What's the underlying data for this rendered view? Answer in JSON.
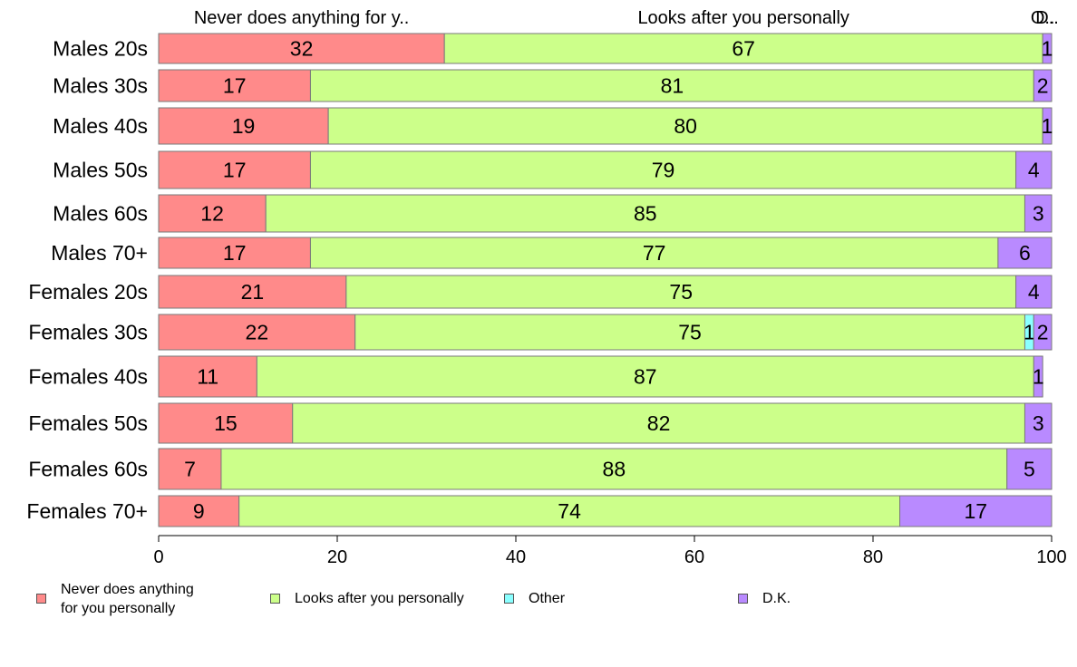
{
  "chart_data": {
    "type": "bar",
    "orientation": "horizontal",
    "stacked": "percent",
    "categories": [
      "Males 20s",
      "Males 30s",
      "Males 40s",
      "Males 50s",
      "Males 60s",
      "Males 70+",
      "Females 20s",
      "Females 30s",
      "Females 40s",
      "Females 50s",
      "Females 60s",
      "Females 70+"
    ],
    "series": [
      {
        "name": "Never does anything for you personally",
        "top_label": "Never does anything for y..",
        "legend_label": "Never does anything\nfor you personally",
        "color": "#FF8A8A",
        "values": [
          32,
          17,
          19,
          17,
          12,
          17,
          21,
          22,
          11,
          15,
          7,
          9
        ]
      },
      {
        "name": "Looks after you personally",
        "top_label": "Looks after you personally",
        "legend_label": "Looks after you personally",
        "color": "#CCFF8A",
        "values": [
          67,
          81,
          80,
          79,
          85,
          77,
          75,
          75,
          87,
          82,
          88,
          74
        ]
      },
      {
        "name": "Other",
        "top_label": "O..",
        "legend_label": "Other",
        "color": "#8AFFFF",
        "values": [
          0,
          0,
          0,
          0,
          0,
          0,
          0,
          1,
          0,
          0,
          0,
          0
        ]
      },
      {
        "name": "D.K.",
        "top_label": "D..",
        "legend_label": "D.K.",
        "color": "#B98AFF",
        "values": [
          1,
          2,
          1,
          4,
          3,
          6,
          4,
          2,
          1,
          3,
          5,
          17
        ]
      }
    ],
    "xlim": [
      0,
      100
    ],
    "xticks": [
      0,
      20,
      40,
      60,
      80,
      100
    ],
    "title": "",
    "xlabel": "",
    "ylabel": "",
    "legend_position": "bottom",
    "grid": false
  }
}
